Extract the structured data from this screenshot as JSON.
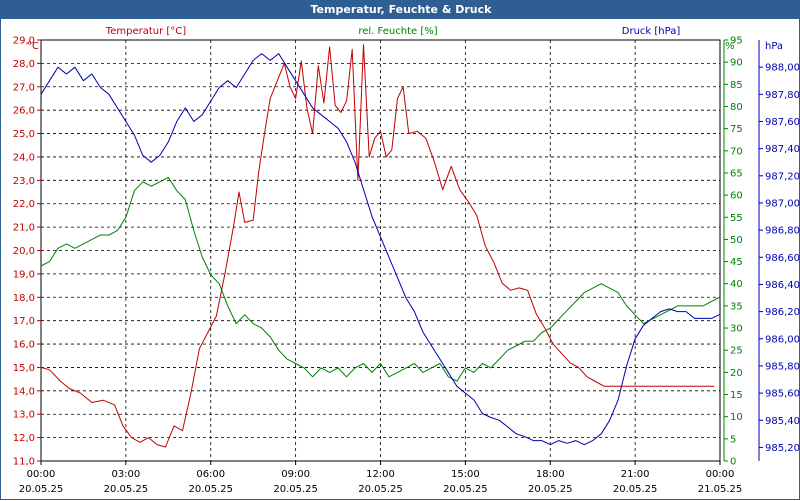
{
  "window": {
    "title": "Temperatur, Feuchte & Druck"
  },
  "colors": {
    "temp": "#c00000",
    "hum": "#008000",
    "press": "#0000b0",
    "grid": "#000000",
    "titlebar": "#2f5f92"
  },
  "chart_data": {
    "type": "line",
    "title": "Temperatur, Feuchte & Druck",
    "legend_placement": "top",
    "grid": true,
    "x_ticks": [
      {
        "time": "00:00",
        "date": "20.05.25"
      },
      {
        "time": "03:00",
        "date": "20.05.25"
      },
      {
        "time": "06:00",
        "date": "20.05.25"
      },
      {
        "time": "09:00",
        "date": "20.05.25"
      },
      {
        "time": "12:00",
        "date": "20.05.25"
      },
      {
        "time": "15:00",
        "date": "20.05.25"
      },
      {
        "time": "18:00",
        "date": "20.05.25"
      },
      {
        "time": "21:00",
        "date": "20.05.25"
      },
      {
        "time": "00:00",
        "date": "21.05.25"
      }
    ],
    "xlim_hours": [
      0,
      24
    ],
    "axes": {
      "temperature": {
        "label": "Temperatur [°C]",
        "unit": "°C",
        "ylim": [
          11.0,
          29.0
        ],
        "ticks": [
          "11,0",
          "12,0",
          "13,0",
          "14,0",
          "15,0",
          "16,0",
          "17,0",
          "18,0",
          "19,0",
          "20,0",
          "21,0",
          "22,0",
          "23,0",
          "24,0",
          "25,0",
          "26,0",
          "27,0",
          "28,0",
          "29,0"
        ]
      },
      "humidity": {
        "label": "rel. Feuchte [%]",
        "unit": "%",
        "ylim": [
          0,
          95
        ],
        "ticks": [
          "0",
          "5",
          "10",
          "15",
          "20",
          "25",
          "30",
          "35",
          "40",
          "45",
          "50",
          "55",
          "60",
          "65",
          "70",
          "75",
          "80",
          "85",
          "90",
          "95"
        ]
      },
      "pressure": {
        "label": "Druck [hPa]",
        "unit": "hPa",
        "ylim": [
          985.1,
          988.2
        ],
        "ticks": [
          "985,20",
          "985,40",
          "985,60",
          "985,80",
          "986,00",
          "986,20",
          "986,40",
          "986,60",
          "986,80",
          "987,00",
          "987,20",
          "987,40",
          "987,60",
          "987,80",
          "988,00"
        ]
      }
    },
    "series": [
      {
        "name": "Temperatur [°C]",
        "axis": "temperature",
        "x": [
          0,
          0.3,
          0.7,
          1.0,
          1.4,
          1.8,
          2.2,
          2.6,
          2.9,
          3.2,
          3.5,
          3.8,
          4.1,
          4.4,
          4.7,
          5.0,
          5.3,
          5.6,
          5.9,
          6.2,
          6.5,
          6.8,
          7.0,
          7.2,
          7.5,
          7.7,
          7.9,
          8.1,
          8.3,
          8.6,
          8.8,
          9.0,
          9.2,
          9.4,
          9.6,
          9.8,
          10.0,
          10.2,
          10.4,
          10.6,
          10.8,
          11.0,
          11.2,
          11.4,
          11.6,
          11.8,
          12.0,
          12.2,
          12.4,
          12.6,
          12.8,
          13.0,
          13.3,
          13.6,
          13.9,
          14.2,
          14.5,
          14.8,
          15.1,
          15.4,
          15.7,
          16.0,
          16.3,
          16.6,
          16.9,
          17.2,
          17.5,
          17.8,
          18.1,
          18.4,
          18.7,
          19.0,
          19.3,
          19.6,
          19.9,
          20.2,
          20.5,
          20.8,
          21.1,
          21.4,
          21.7,
          22.0,
          22.3,
          22.6,
          22.9,
          23.2,
          23.5,
          23.8
        ],
        "values": [
          15.0,
          14.9,
          14.4,
          14.1,
          13.9,
          13.5,
          13.6,
          13.4,
          12.5,
          12.0,
          11.8,
          12.0,
          11.7,
          11.6,
          12.5,
          12.3,
          13.9,
          15.8,
          16.5,
          17.2,
          19.0,
          21.0,
          22.5,
          21.2,
          21.3,
          23.4,
          25.0,
          26.5,
          27.1,
          28.0,
          27.0,
          26.5,
          28.1,
          26.1,
          25.0,
          27.9,
          26.3,
          28.7,
          26.2,
          25.9,
          26.4,
          28.6,
          23.0,
          28.8,
          24.0,
          24.8,
          25.1,
          24.0,
          24.3,
          26.5,
          27.0,
          25.0,
          25.1,
          24.8,
          23.8,
          22.6,
          23.6,
          22.6,
          22.1,
          21.5,
          20.2,
          19.5,
          18.6,
          18.3,
          18.4,
          18.3,
          17.3,
          16.7,
          16.0,
          15.6,
          15.2,
          15.0,
          14.6,
          14.4,
          14.2,
          14.2,
          14.2,
          14.2,
          14.2,
          14.2,
          14.2,
          14.2,
          14.2,
          14.2,
          14.2,
          14.2,
          14.2,
          14.2
        ]
      },
      {
        "name": "rel. Feuchte [%]",
        "axis": "humidity",
        "x": [
          0,
          0.3,
          0.6,
          0.9,
          1.2,
          1.5,
          1.8,
          2.1,
          2.4,
          2.7,
          3.0,
          3.3,
          3.6,
          3.9,
          4.2,
          4.5,
          4.8,
          5.1,
          5.4,
          5.7,
          6.0,
          6.3,
          6.6,
          6.9,
          7.2,
          7.5,
          7.8,
          8.1,
          8.4,
          8.7,
          9.0,
          9.3,
          9.6,
          9.9,
          10.2,
          10.5,
          10.8,
          11.1,
          11.4,
          11.7,
          12.0,
          12.3,
          12.6,
          12.9,
          13.2,
          13.5,
          13.8,
          14.1,
          14.4,
          14.7,
          15.0,
          15.3,
          15.6,
          15.9,
          16.2,
          16.5,
          16.8,
          17.1,
          17.4,
          17.7,
          18.0,
          18.3,
          18.6,
          18.9,
          19.2,
          19.5,
          19.8,
          20.1,
          20.4,
          20.7,
          21.0,
          21.3,
          21.6,
          21.9,
          22.2,
          22.5,
          22.8,
          23.1,
          23.4,
          23.7,
          24.0
        ],
        "values": [
          44,
          45,
          48,
          49,
          48,
          49,
          50,
          51,
          51,
          52,
          55,
          61,
          63,
          62,
          63,
          64,
          61,
          59,
          52,
          46,
          42,
          40,
          35,
          31,
          33,
          31,
          30,
          28,
          25,
          23,
          22,
          21,
          19,
          21,
          20,
          21,
          19,
          21,
          22,
          20,
          22,
          19,
          20,
          21,
          22,
          20,
          21,
          22,
          19,
          18,
          21,
          20,
          22,
          21,
          23,
          25,
          26,
          27,
          27,
          29,
          30,
          32,
          34,
          36,
          38,
          39,
          40,
          39,
          38,
          35,
          33,
          31,
          32,
          33,
          34,
          35,
          35,
          35,
          35,
          36,
          37
        ]
      },
      {
        "name": "Druck [hPa]",
        "axis": "pressure",
        "x": [
          0,
          0.3,
          0.6,
          0.9,
          1.2,
          1.5,
          1.8,
          2.1,
          2.4,
          2.7,
          3.0,
          3.3,
          3.6,
          3.9,
          4.2,
          4.5,
          4.8,
          5.1,
          5.4,
          5.7,
          6.0,
          6.3,
          6.6,
          6.9,
          7.2,
          7.5,
          7.8,
          8.1,
          8.4,
          8.7,
          9.0,
          9.3,
          9.6,
          9.9,
          10.2,
          10.5,
          10.8,
          11.1,
          11.4,
          11.7,
          12.0,
          12.3,
          12.6,
          12.9,
          13.2,
          13.5,
          13.8,
          14.1,
          14.4,
          14.7,
          15.0,
          15.3,
          15.6,
          15.9,
          16.2,
          16.5,
          16.8,
          17.1,
          17.4,
          17.7,
          18.0,
          18.3,
          18.6,
          18.9,
          19.2,
          19.5,
          19.8,
          20.1,
          20.4,
          20.7,
          21.0,
          21.3,
          21.6,
          21.9,
          22.2,
          22.5,
          22.8,
          23.1,
          23.4,
          23.7,
          24.0
        ],
        "values": [
          987.8,
          987.9,
          988.0,
          987.95,
          988.0,
          987.9,
          987.95,
          987.85,
          987.8,
          987.7,
          987.6,
          987.5,
          987.35,
          987.3,
          987.35,
          987.45,
          987.6,
          987.7,
          987.6,
          987.65,
          987.75,
          987.85,
          987.9,
          987.85,
          987.95,
          988.05,
          988.1,
          988.05,
          988.1,
          988.0,
          987.9,
          987.8,
          987.7,
          987.65,
          987.6,
          987.55,
          987.45,
          987.3,
          987.1,
          986.9,
          986.75,
          986.6,
          986.45,
          986.3,
          986.2,
          986.05,
          985.95,
          985.85,
          985.75,
          985.65,
          985.6,
          985.55,
          985.45,
          985.42,
          985.4,
          985.35,
          985.3,
          985.28,
          985.25,
          985.25,
          985.22,
          985.25,
          985.23,
          985.25,
          985.22,
          985.25,
          985.3,
          985.4,
          985.55,
          985.8,
          986.0,
          986.1,
          986.15,
          986.2,
          986.22,
          986.2,
          986.2,
          986.15,
          986.15,
          986.15,
          986.18
        ]
      }
    ]
  }
}
